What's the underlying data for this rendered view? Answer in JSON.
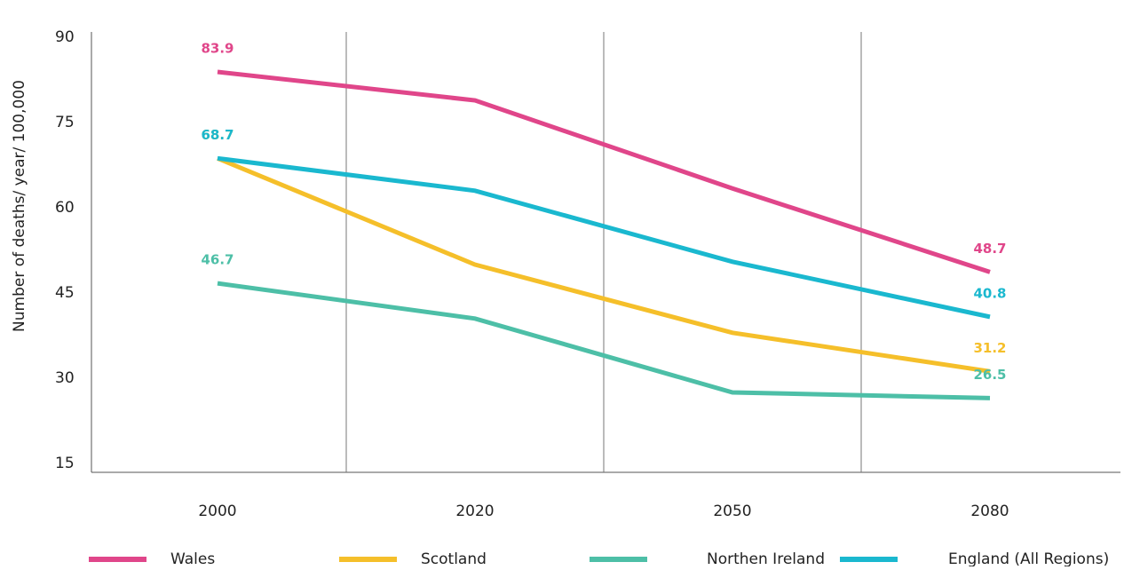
{
  "chart_data": {
    "type": "line",
    "y_axis_label": "Number of deaths/ year/ 100,000",
    "categories": [
      "2000",
      "2020",
      "2050",
      "2080"
    ],
    "series": [
      {
        "name": "Wales",
        "color": "#e0468a",
        "values": [
          83.9,
          78.9,
          63.4,
          48.7
        ]
      },
      {
        "name": "Scotland",
        "color": "#f5bf2a",
        "values": [
          68.7,
          50,
          38,
          31.2
        ]
      },
      {
        "name": "Northen Ireland",
        "color": "#4dbfa7",
        "values": [
          46.7,
          40.5,
          27.5,
          26.5
        ]
      },
      {
        "name": "England (All Regions)",
        "color": "#1ab8cf",
        "values": [
          68.7,
          63,
          50.5,
          40.8
        ]
      }
    ],
    "data_labels": "ends",
    "ylim": [
      15,
      90
    ],
    "yticks": [
      15,
      30,
      45,
      60,
      75,
      90
    ],
    "grid": "x",
    "legend": "bottom"
  }
}
